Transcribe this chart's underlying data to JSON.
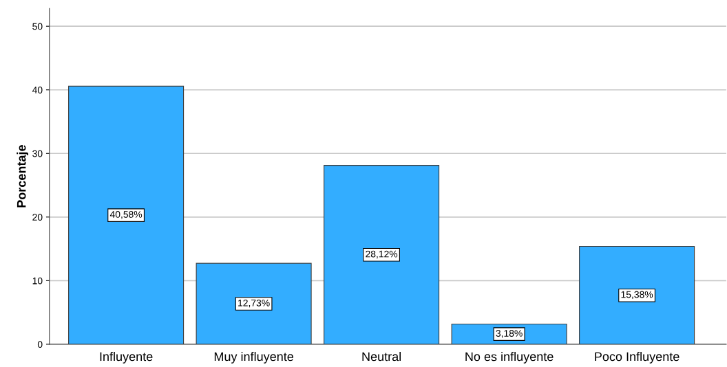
{
  "chart_data": {
    "type": "bar",
    "ylabel": "Porcentaje",
    "categories": [
      "Influyente",
      "Muy influyente",
      "Neutral",
      "No es influyente",
      "Poco Influyente"
    ],
    "values": [
      40.58,
      12.73,
      28.12,
      3.18,
      15.38
    ],
    "value_labels": [
      "40,58%",
      "12,73%",
      "28,12%",
      "3,18%",
      "15,38%"
    ],
    "color": "#33adff",
    "ylim": [
      0,
      52.8
    ],
    "yticks": [
      0,
      10,
      20,
      30,
      40,
      50
    ],
    "grid": "y"
  }
}
